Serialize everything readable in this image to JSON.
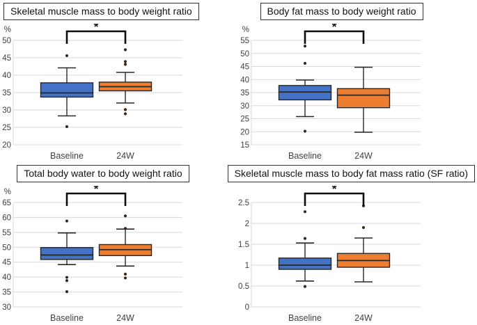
{
  "figure": {
    "categories": [
      "Baseline",
      "24W"
    ],
    "significance_label": "*",
    "colors": {
      "baseline_box": "#4472C4",
      "week24_box": "#ED7D31",
      "box_stroke": "#262626",
      "gridline": "#D9D9D9",
      "bracket": "#0d0d0d",
      "tick_text": "#404040",
      "baseline_outlier": "#252e3a",
      "week24_outlier": "#3b2718"
    }
  },
  "chart_data": [
    {
      "type": "boxplot",
      "title": "Skeletal muscle mass to body weight ratio",
      "ylabel": "%",
      "ylim": [
        20,
        50
      ],
      "ytick_step": 5,
      "grid": true,
      "significance": "*",
      "categories": [
        "Baseline",
        "24W"
      ],
      "series": [
        {
          "name": "Baseline",
          "color": "#4472C4",
          "outlier_color": "#252e3a",
          "whisker_low": 28.3,
          "q1": 33.7,
          "median": 34.9,
          "q3": 37.8,
          "whisker_high": 42.1,
          "outliers": [
            45.6,
            25.2
          ]
        },
        {
          "name": "24W",
          "color": "#ED7D31",
          "outlier_color": "#3b2718",
          "whisker_low": 32.0,
          "q1": 35.5,
          "median": 36.7,
          "q3": 38.0,
          "whisker_high": 40.8,
          "outliers": [
            47.3,
            43.9,
            43.1,
            30.1,
            28.9
          ]
        }
      ]
    },
    {
      "type": "boxplot",
      "title": "Body fat mass to body weight ratio",
      "ylabel": "%",
      "ylim": [
        15,
        55
      ],
      "ytick_step": 5,
      "grid": true,
      "significance": "*",
      "categories": [
        "Baseline",
        "24W"
      ],
      "series": [
        {
          "name": "Baseline",
          "color": "#4472C4",
          "outlier_color": "#252e3a",
          "whisker_low": 25.8,
          "q1": 32.2,
          "median": 35.2,
          "q3": 37.7,
          "whisker_high": 39.8,
          "outliers": [
            52.8,
            46.2,
            20.2
          ]
        },
        {
          "name": "24W",
          "color": "#ED7D31",
          "outlier_color": "#3b2718",
          "whisker_low": 19.8,
          "q1": 29.2,
          "median": 34.0,
          "q3": 36.5,
          "whisker_high": 44.7,
          "outliers": []
        }
      ]
    },
    {
      "type": "boxplot",
      "title": "Total body water to body weight ratio",
      "ylabel": "%",
      "ylim": [
        30,
        65
      ],
      "ytick_step": 5,
      "grid": true,
      "significance": "*",
      "categories": [
        "Baseline",
        "24W"
      ],
      "series": [
        {
          "name": "Baseline",
          "color": "#4472C4",
          "outlier_color": "#252e3a",
          "whisker_low": 44.2,
          "q1": 45.9,
          "median": 47.4,
          "q3": 49.9,
          "whisker_high": 54.8,
          "outliers": [
            58.8,
            39.9,
            38.8,
            35.1
          ]
        },
        {
          "name": "24W",
          "color": "#ED7D31",
          "outlier_color": "#3b2718",
          "whisker_low": 43.7,
          "q1": 47.2,
          "median": 49.2,
          "q3": 50.9,
          "whisker_high": 56.1,
          "outliers": [
            60.5,
            56.3,
            41.0,
            39.7
          ]
        }
      ]
    },
    {
      "type": "boxplot",
      "title": "Skeletal muscle mass to body fat mass ratio (SF ratio)",
      "ylabel": "",
      "ylim": [
        0,
        2.5
      ],
      "ytick_step": 0.5,
      "grid": true,
      "significance": "*",
      "categories": [
        "Baseline",
        "24W"
      ],
      "series": [
        {
          "name": "Baseline",
          "color": "#4472C4",
          "outlier_color": "#252e3a",
          "whisker_low": 0.62,
          "q1": 0.9,
          "median": 1.0,
          "q3": 1.17,
          "whisker_high": 1.53,
          "outliers": [
            2.28,
            1.64,
            0.49
          ]
        },
        {
          "name": "24W",
          "color": "#ED7D31",
          "outlier_color": "#3b2718",
          "whisker_low": 0.6,
          "q1": 0.95,
          "median": 1.11,
          "q3": 1.28,
          "whisker_high": 1.65,
          "outliers": [
            2.42,
            1.9
          ]
        }
      ]
    }
  ]
}
